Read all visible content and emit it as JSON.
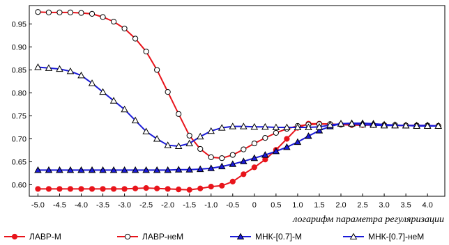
{
  "chart_data": {
    "type": "line",
    "title": "",
    "xlabel": "логарифм параметра регуляризации",
    "ylabel": "",
    "xlim": [
      -5.2,
      4.4
    ],
    "ylim": [
      0.575,
      0.99
    ],
    "xticks": [
      "-5.0",
      "-4.5",
      "-4.0",
      "-3.5",
      "-3.0",
      "-2.5",
      "-2.0",
      "-1.5",
      "-1.0",
      "-0.5",
      "0",
      "0.5",
      "1.0",
      "1.5",
      "2.0",
      "2.5",
      "3.0",
      "3.5",
      "4.0"
    ],
    "yticks": [
      "0.60",
      "0.65",
      "0.70",
      "0.75",
      "0.80",
      "0.85",
      "0.90",
      "0.95"
    ],
    "grid": false,
    "legend_position": "bottom",
    "x": [
      -5.0,
      -4.75,
      -4.5,
      -4.25,
      -4.0,
      -3.75,
      -3.5,
      -3.25,
      -3.0,
      -2.75,
      -2.5,
      -2.25,
      -2.0,
      -1.75,
      -1.5,
      -1.25,
      -1.0,
      -0.75,
      -0.5,
      -0.25,
      0.0,
      0.25,
      0.5,
      0.75,
      1.0,
      1.25,
      1.5,
      1.75,
      2.0,
      2.25,
      2.5,
      2.75,
      3.0,
      3.25,
      3.5,
      3.75,
      4.0,
      4.25
    ],
    "series": [
      {
        "name": "ЛАВР-М",
        "color": "#e8141b",
        "marker": "circle-filled",
        "values": [
          0.591,
          0.591,
          0.591,
          0.591,
          0.591,
          0.591,
          0.591,
          0.591,
          0.591,
          0.592,
          0.593,
          0.592,
          0.591,
          0.59,
          0.589,
          0.592,
          0.596,
          0.598,
          0.607,
          0.623,
          0.638,
          0.655,
          0.676,
          0.7,
          0.724,
          0.733,
          0.733,
          0.732,
          0.731,
          0.73,
          0.73,
          0.73,
          0.73,
          0.729,
          0.729,
          0.729,
          0.728,
          0.728
        ]
      },
      {
        "name": "ЛАВР-неМ",
        "color": "#e8141b",
        "marker": "circle-open",
        "values": [
          0.976,
          0.975,
          0.975,
          0.975,
          0.974,
          0.972,
          0.965,
          0.955,
          0.94,
          0.918,
          0.89,
          0.85,
          0.802,
          0.754,
          0.707,
          0.678,
          0.66,
          0.658,
          0.665,
          0.677,
          0.69,
          0.702,
          0.713,
          0.722,
          0.728,
          0.731,
          0.732,
          0.732,
          0.731,
          0.731,
          0.731,
          0.73,
          0.73,
          0.73,
          0.729,
          0.729,
          0.729,
          0.728
        ]
      },
      {
        "name": "МНК-[0.7]-М",
        "color": "#1a1ad8",
        "marker": "triangle-filled",
        "values": [
          0.632,
          0.632,
          0.632,
          0.632,
          0.632,
          0.632,
          0.632,
          0.632,
          0.632,
          0.632,
          0.632,
          0.632,
          0.632,
          0.633,
          0.633,
          0.634,
          0.636,
          0.64,
          0.645,
          0.651,
          0.658,
          0.665,
          0.673,
          0.682,
          0.693,
          0.706,
          0.718,
          0.727,
          0.733,
          0.734,
          0.734,
          0.733,
          0.731,
          0.73,
          0.729,
          0.729,
          0.729,
          0.728
        ]
      },
      {
        "name": "МНК-[0.7]-неМ",
        "color": "#1a1ad8",
        "marker": "triangle-open",
        "values": [
          0.856,
          0.854,
          0.852,
          0.847,
          0.838,
          0.821,
          0.802,
          0.783,
          0.764,
          0.74,
          0.716,
          0.7,
          0.686,
          0.684,
          0.69,
          0.705,
          0.717,
          0.724,
          0.727,
          0.727,
          0.726,
          0.726,
          0.725,
          0.725,
          0.725,
          0.725,
          0.726,
          0.73,
          0.733,
          0.733,
          0.731,
          0.73,
          0.729,
          0.729,
          0.729,
          0.728,
          0.728,
          0.728
        ]
      }
    ]
  }
}
